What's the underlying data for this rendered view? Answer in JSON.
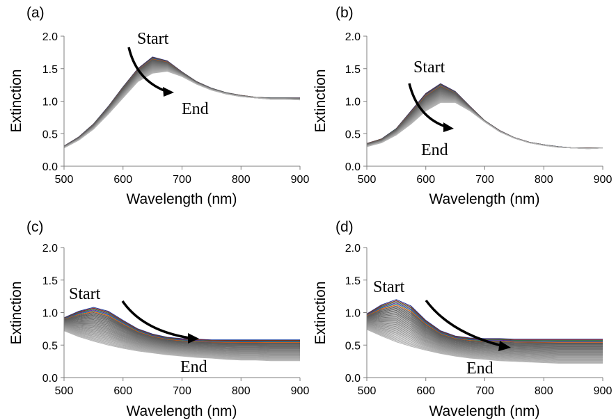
{
  "figure": {
    "background": "#ffffff",
    "axis_color": "#7f7f7f",
    "text_color": "#000000",
    "arrow_color": "#000000"
  },
  "chart_data": [
    {
      "type": "line",
      "panel_label": "(a)",
      "xlabel": "Wavelength (nm)",
      "ylabel": "Extinction",
      "xlim": [
        500,
        900
      ],
      "ylim": [
        0,
        2.0
      ],
      "x_ticks": [
        "500",
        "600",
        "700",
        "800",
        "900"
      ],
      "y_ticks": [
        "0.0",
        "0.5",
        "1.0",
        "1.5",
        "2.0"
      ],
      "grid": false,
      "annotations": {
        "start": "Start",
        "end": "End"
      },
      "series_count": 40,
      "x": [
        500,
        525,
        550,
        575,
        600,
        625,
        650,
        675,
        700,
        725,
        750,
        775,
        800,
        825,
        850,
        875,
        900
      ],
      "series_first": [
        0.31,
        0.45,
        0.65,
        0.92,
        1.22,
        1.5,
        1.68,
        1.62,
        1.45,
        1.3,
        1.2,
        1.13,
        1.09,
        1.06,
        1.05,
        1.05,
        1.05
      ],
      "series_last": [
        0.28,
        0.4,
        0.57,
        0.8,
        1.05,
        1.3,
        1.43,
        1.46,
        1.38,
        1.26,
        1.17,
        1.11,
        1.07,
        1.05,
        1.03,
        1.03,
        1.02
      ]
    },
    {
      "type": "line",
      "panel_label": "(b)",
      "xlabel": "Wavelength (nm)",
      "ylabel": "Extinction",
      "xlim": [
        500,
        900
      ],
      "ylim": [
        0,
        2.0
      ],
      "x_ticks": [
        "500",
        "600",
        "700",
        "800",
        "900"
      ],
      "y_ticks": [
        "0.0",
        "0.5",
        "1.0",
        "1.5",
        "2.0"
      ],
      "grid": false,
      "annotations": {
        "start": "Start",
        "end": "End"
      },
      "series_count": 40,
      "x": [
        500,
        525,
        550,
        575,
        600,
        625,
        650,
        675,
        700,
        725,
        750,
        775,
        800,
        825,
        850,
        875,
        900
      ],
      "series_first": [
        0.35,
        0.42,
        0.58,
        0.85,
        1.12,
        1.27,
        1.15,
        0.92,
        0.7,
        0.55,
        0.44,
        0.37,
        0.33,
        0.3,
        0.28,
        0.28,
        0.28
      ],
      "series_last": [
        0.3,
        0.36,
        0.48,
        0.65,
        0.85,
        0.98,
        0.98,
        0.85,
        0.68,
        0.53,
        0.43,
        0.36,
        0.32,
        0.29,
        0.28,
        0.27,
        0.28
      ]
    },
    {
      "type": "line",
      "panel_label": "(c)",
      "xlabel": "Wavelength (nm)",
      "ylabel": "Extinction",
      "xlim": [
        500,
        900
      ],
      "ylim": [
        0,
        2.0
      ],
      "x_ticks": [
        "500",
        "600",
        "700",
        "800",
        "900"
      ],
      "y_ticks": [
        "0.0",
        "0.5",
        "1.0",
        "1.5",
        "2.0"
      ],
      "grid": false,
      "annotations": {
        "start": "Start",
        "end": "End"
      },
      "series_count": 40,
      "x": [
        500,
        525,
        550,
        575,
        600,
        625,
        650,
        675,
        700,
        725,
        750,
        775,
        800,
        825,
        850,
        875,
        900
      ],
      "series_first": [
        0.92,
        1.02,
        1.08,
        1.02,
        0.88,
        0.75,
        0.67,
        0.62,
        0.6,
        0.59,
        0.58,
        0.58,
        0.58,
        0.58,
        0.58,
        0.58,
        0.58
      ],
      "series_last": [
        0.72,
        0.63,
        0.56,
        0.5,
        0.45,
        0.41,
        0.38,
        0.35,
        0.33,
        0.31,
        0.3,
        0.28,
        0.27,
        0.27,
        0.26,
        0.26,
        0.26
      ]
    },
    {
      "type": "line",
      "panel_label": "(d)",
      "xlabel": "Wavelength (nm)",
      "ylabel": "Extinction",
      "xlim": [
        500,
        900
      ],
      "ylim": [
        0,
        2.0
      ],
      "x_ticks": [
        "500",
        "600",
        "700",
        "800",
        "900"
      ],
      "y_ticks": [
        "0.0",
        "0.5",
        "1.0",
        "1.5",
        "2.0"
      ],
      "grid": false,
      "annotations": {
        "start": "Start",
        "end": "End"
      },
      "series_count": 40,
      "x": [
        500,
        525,
        550,
        575,
        600,
        625,
        650,
        675,
        700,
        725,
        750,
        775,
        800,
        825,
        850,
        875,
        900
      ],
      "series_first": [
        0.98,
        1.12,
        1.2,
        1.1,
        0.88,
        0.72,
        0.64,
        0.61,
        0.6,
        0.6,
        0.59,
        0.59,
        0.59,
        0.59,
        0.59,
        0.59,
        0.59
      ],
      "series_last": [
        0.74,
        0.64,
        0.55,
        0.48,
        0.42,
        0.37,
        0.33,
        0.3,
        0.28,
        0.26,
        0.25,
        0.24,
        0.23,
        0.22,
        0.22,
        0.22,
        0.22
      ]
    }
  ]
}
